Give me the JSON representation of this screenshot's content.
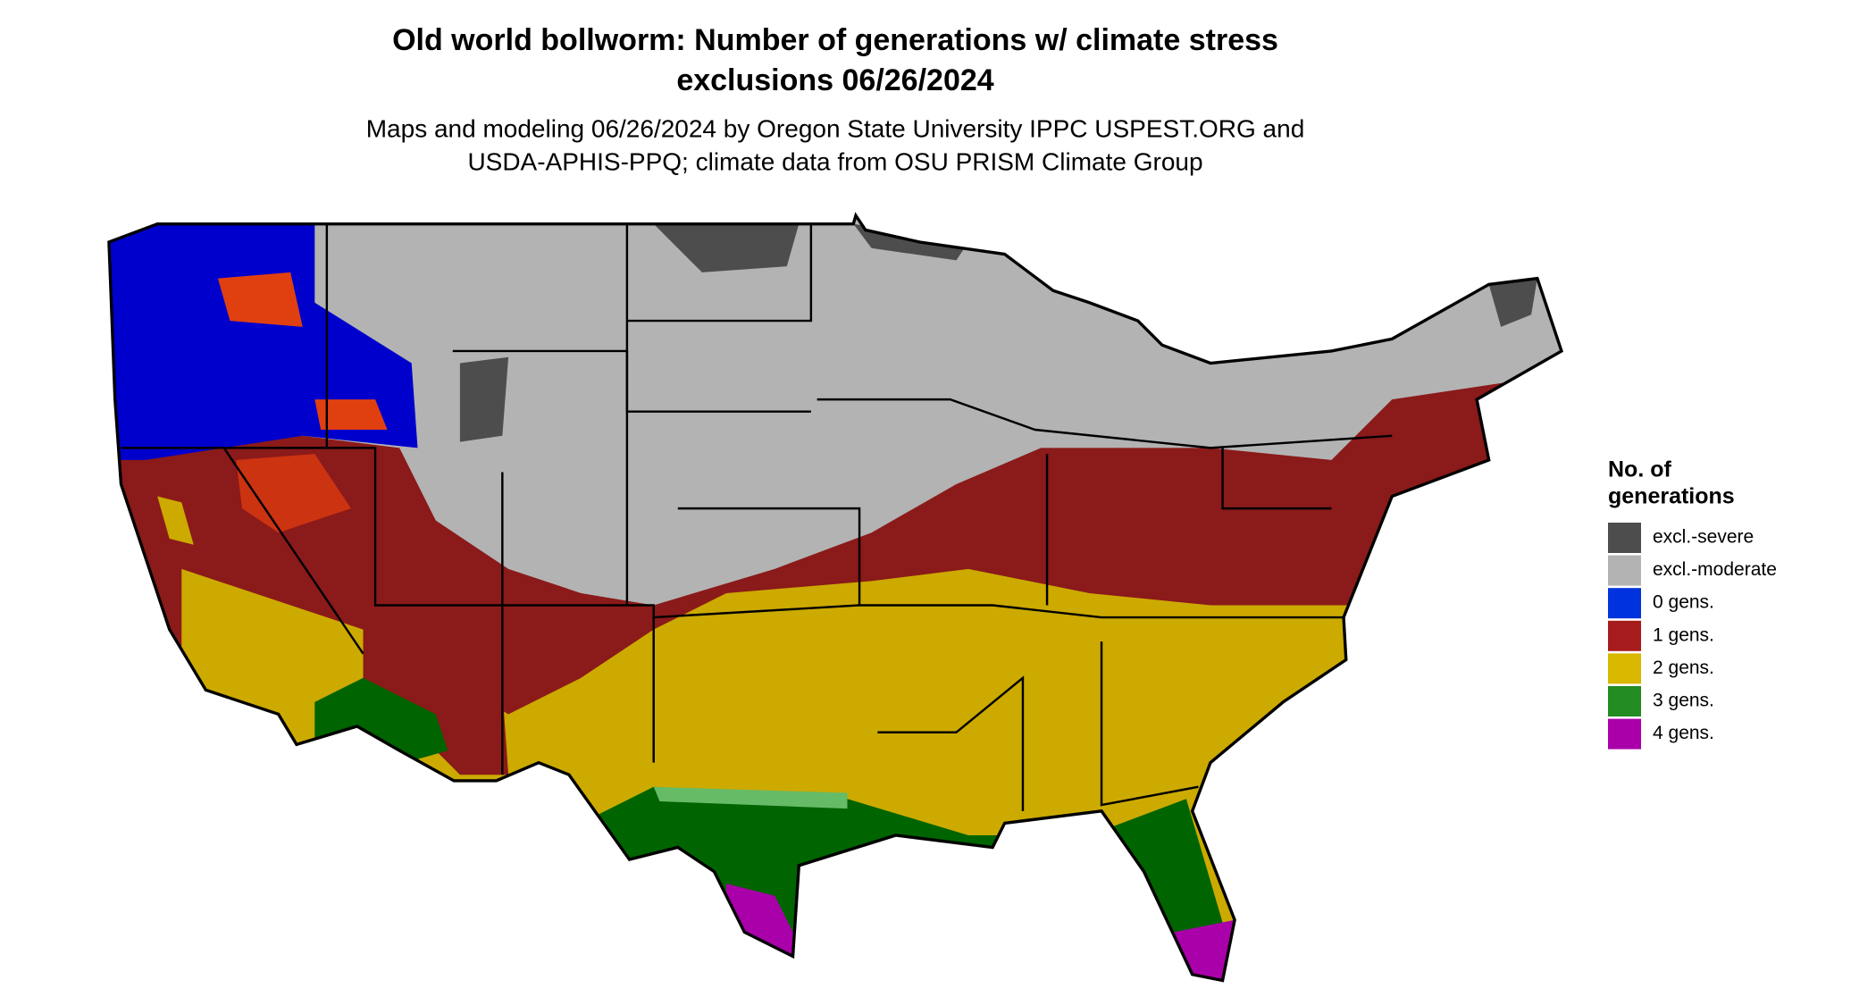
{
  "title": [
    "Old world bollworm: Number of generations w/ climate stress",
    "exclusions 06/26/2024"
  ],
  "subtitle": [
    "Maps and modeling 06/26/2024 by Oregon State University IPPC USPEST.ORG and",
    "USDA-APHIS-PPQ; climate data from OSU PRISM Climate Group"
  ],
  "legend": {
    "title": [
      "No. of",
      "generations"
    ],
    "items": [
      {
        "label": "excl.-severe",
        "color": "#4d4d4d"
      },
      {
        "label": "excl.-moderate",
        "color": "#b3b3b3"
      },
      {
        "label": "0 gens.",
        "color": "#0033dd"
      },
      {
        "label": "1 gens.",
        "color": "#a61c1c"
      },
      {
        "label": "2 gens.",
        "color": "#d9b800"
      },
      {
        "label": "3 gens.",
        "color": "#228b22"
      },
      {
        "label": "4 gens.",
        "color": "#aa00aa"
      }
    ]
  }
}
